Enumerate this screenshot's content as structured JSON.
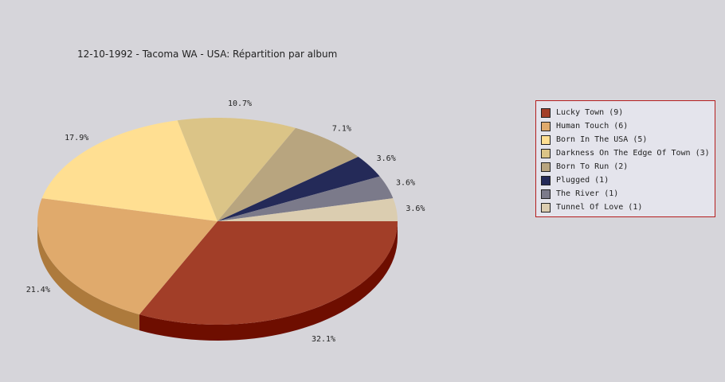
{
  "chart_data": {
    "type": "pie",
    "title": "12-10-1992 - Tacoma WA - USA:  Répartition par album",
    "categories": [
      "Lucky Town",
      "Human Touch",
      "Born In The USA",
      "Darkness On The Edge Of Town",
      "Born To Run",
      "Plugged",
      "The River",
      "Tunnel Of Love"
    ],
    "values": [
      9,
      6,
      5,
      3,
      2,
      1,
      1,
      1
    ],
    "percent_labels": [
      "32.1%",
      "21.4%",
      "17.9%",
      "10.7%",
      "7.1%",
      "3.6%",
      "3.6%",
      "3.6%"
    ],
    "legend_labels": [
      "Lucky Town (9)",
      "Human Touch (6)",
      "Born In The USA (5)",
      "Darkness On The Edge Of Town (3)",
      "Born To Run (2)",
      "Plugged (1)",
      "The River (1)",
      "Tunnel Of Love (1)"
    ],
    "colors": [
      "#a23e28",
      "#e0aa6c",
      "#ffdf92",
      "#dbc487",
      "#b8a57f",
      "#242a58",
      "#7b7a8a",
      "#dbcdb0"
    ],
    "side_colors": [
      "#6e0e00",
      "#ad7a3c",
      "#c8a860",
      "#ab9457",
      "#88754f",
      "#101438",
      "#4b4a5a",
      "#aba080"
    ],
    "legend_placement": "right",
    "legend_border_color": "#b41e1e"
  }
}
